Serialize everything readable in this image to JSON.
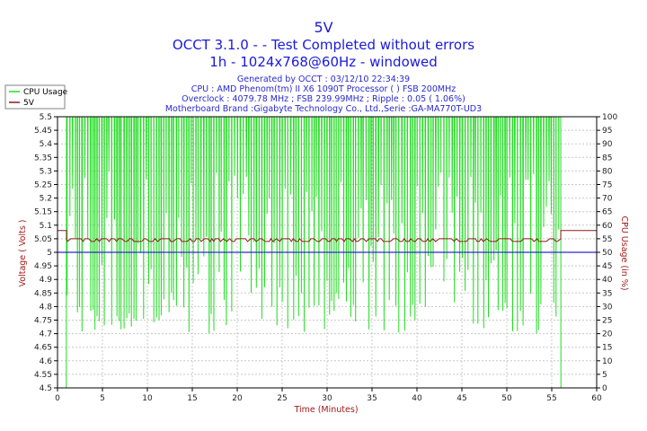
{
  "header": {
    "title": "5V",
    "subtitle1": "OCCT 3.1.0 -  - Test Completed without errors",
    "subtitle2": "1h - 1024x768@60Hz - windowed",
    "info": [
      "Generated by OCCT : 03/12/10 22:34:39",
      "CPU : AMD Phenom(tm) II X6 1090T Processor (  ) FSB 200MHz",
      "Overclock : 4079.78 MHz ; FSB 239.99MHz ; Ripple : 0.05 ( 1.06%)",
      "Motherboard Brand :Gigabyte Technology Co., Ltd.,Serie :GA-MA770T-UD3"
    ]
  },
  "colors": {
    "cpu": "#22dd22",
    "volt": "#8b1a1a",
    "ref": "#2b2bcc",
    "grid": "#c8c8c8",
    "title": "#1a1adc",
    "axis_label": "#a11a1a"
  },
  "chart_data": {
    "type": "line",
    "title": "5V",
    "xlabel": "Time (Minutes)",
    "ylabel_left": "Voltage ( Volts )",
    "ylabel_right": "CPU Usage (in %)",
    "xlim": [
      0,
      60
    ],
    "ylim_left": [
      4.5,
      5.5
    ],
    "ylim_right": [
      0,
      100
    ],
    "x_ticks": [
      0,
      5,
      10,
      15,
      20,
      25,
      30,
      35,
      40,
      45,
      50,
      55,
      60
    ],
    "y_left_ticks": [
      "4.5",
      "4.55",
      "4.6",
      "4.65",
      "4.7",
      "4.75",
      "4.8",
      "4.85",
      "4.9",
      "4.95",
      "5",
      "5.05",
      "5.1",
      "5.15",
      "5.2",
      "5.25",
      "5.3",
      "5.35",
      "5.4",
      "5.45",
      "5.5"
    ],
    "y_right_ticks": [
      "0",
      "5",
      "10",
      "15",
      "20",
      "25",
      "30",
      "35",
      "40",
      "45",
      "50",
      "55",
      "60",
      "65",
      "70",
      "75",
      "80",
      "85",
      "90",
      "95",
      "100"
    ],
    "grid": true,
    "legend_position": "top-left",
    "reference_line": 5.0,
    "series": [
      {
        "name": "CPU Usage",
        "axis": "right",
        "idle_before": 0,
        "active_start": 1.0,
        "active_end": 56.0,
        "idle_after": 0,
        "peak": 100,
        "trough_range": [
          20,
          80
        ],
        "dip_intervals_min": 0.22
      },
      {
        "name": "5V",
        "axis": "left",
        "idle_value": 5.08,
        "load_value": 5.05,
        "load_dip": 5.04,
        "load_start": 1.0,
        "load_end": 56.0,
        "x_end": 60
      }
    ]
  }
}
